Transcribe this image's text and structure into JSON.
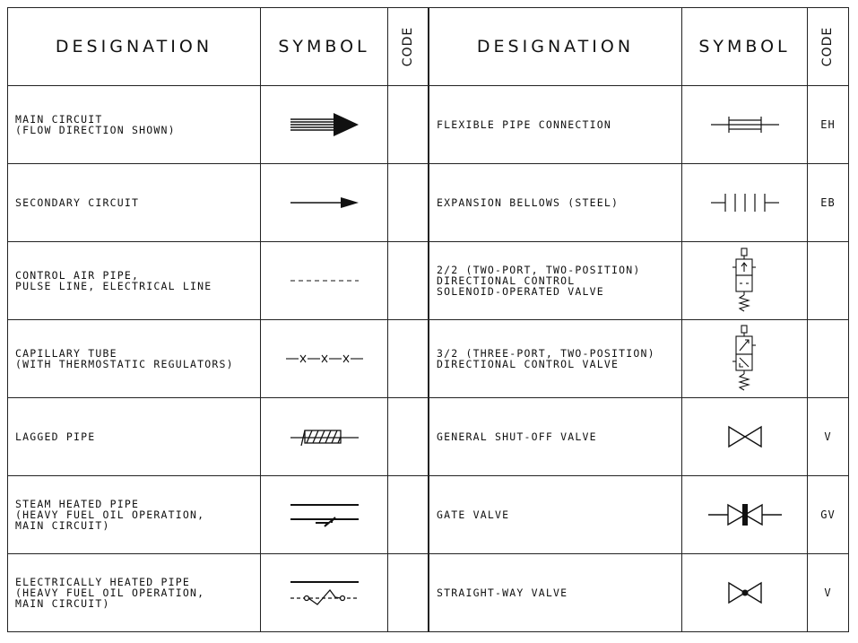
{
  "headers": {
    "designation": "DESIGNATION",
    "symbol": "SYMBOL",
    "code": "CODE"
  },
  "left_rows": [
    {
      "designation": "MAIN CIRCUIT\n(FLOW DIRECTION SHOWN)",
      "symbol": "main-circuit-arrow-icon",
      "code": ""
    },
    {
      "designation": "SECONDARY CIRCUIT",
      "symbol": "secondary-circuit-arrow-icon",
      "code": ""
    },
    {
      "designation": "CONTROL AIR PIPE,\nPULSE LINE, ELECTRICAL LINE",
      "symbol": "dashed-line-icon",
      "code": ""
    },
    {
      "designation": "CAPILLARY TUBE\n(WITH THERMOSTATIC REGULATORS)",
      "symbol": "capillary-tube-icon",
      "code": ""
    },
    {
      "designation": "LAGGED PIPE",
      "symbol": "lagged-pipe-icon",
      "code": ""
    },
    {
      "designation": "STEAM HEATED PIPE\n(HEAVY FUEL OIL OPERATION,\nMAIN CIRCUIT)",
      "symbol": "steam-heated-pipe-icon",
      "code": ""
    },
    {
      "designation": "ELECTRICALLY HEATED PIPE\n(HEAVY FUEL OIL OPERATION,\nMAIN CIRCUIT)",
      "symbol": "electrically-heated-pipe-icon",
      "code": ""
    }
  ],
  "right_rows": [
    {
      "designation": "FLEXIBLE PIPE CONNECTION",
      "symbol": "flexible-pipe-connection-icon",
      "code": "EH"
    },
    {
      "designation": "EXPANSION BELLOWS (STEEL)",
      "symbol": "expansion-bellows-icon",
      "code": "EB"
    },
    {
      "designation": "2/2 (TWO-PORT, TWO-POSITION)\nDIRECTIONAL CONTROL\nSOLENOID-OPERATED VALVE",
      "symbol": "solenoid-valve-2-2-icon",
      "code": ""
    },
    {
      "designation": "3/2 (THREE-PORT, TWO-POSITION)\nDIRECTIONAL CONTROL VALVE",
      "symbol": "directional-valve-3-2-icon",
      "code": ""
    },
    {
      "designation": "GENERAL SHUT-OFF VALVE",
      "symbol": "shut-off-valve-icon",
      "code": "V"
    },
    {
      "designation": "GATE VALVE",
      "symbol": "gate-valve-icon",
      "code": "GV"
    },
    {
      "designation": "STRAIGHT-WAY VALVE",
      "symbol": "straight-way-valve-icon",
      "code": "V"
    }
  ]
}
